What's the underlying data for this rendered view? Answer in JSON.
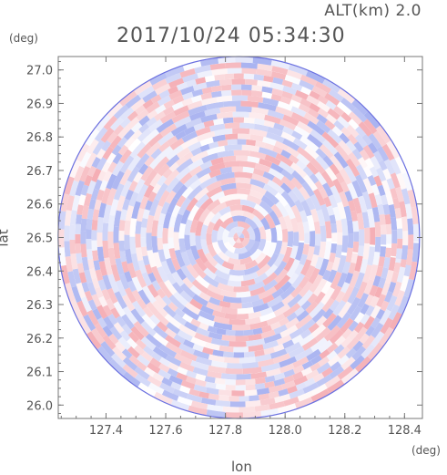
{
  "header": {
    "altitude": "ALT(km) 2.0",
    "timestamp": "2017/10/24 05:34:30"
  },
  "chart_data": {
    "type": "heatmap",
    "title": "2017/10/24 05:34:30",
    "subtitle": "ALT(km) 2.0",
    "xlabel": "lon",
    "ylabel": "lat",
    "x_unit": "(deg)",
    "y_unit": "(deg)",
    "xlim": [
      127.24,
      128.46
    ],
    "ylim": [
      25.96,
      27.04
    ],
    "x_ticks": [
      127.4,
      127.6,
      127.8,
      128.0,
      128.2,
      128.4
    ],
    "x_tick_labels": [
      "127.4",
      "127.6",
      "127.8",
      "128.0",
      "128.2",
      "128.4"
    ],
    "y_ticks": [
      26.0,
      26.1,
      26.2,
      26.3,
      26.4,
      26.5,
      26.6,
      26.7,
      26.8,
      26.9,
      27.0
    ],
    "y_tick_labels": [
      "26.0",
      "26.1",
      "26.2",
      "26.3",
      "26.4",
      "26.5",
      "26.6",
      "26.7",
      "26.8",
      "26.9",
      "27.0"
    ],
    "center": {
      "lon": 127.845,
      "lat": 26.5
    },
    "radius_lat_deg": 0.54,
    "colormap": {
      "negative": "#9aa6ee",
      "positive": "#f3a0a8",
      "zero": "#ffffff",
      "edge": "#6a70e0"
    },
    "grid": false
  }
}
